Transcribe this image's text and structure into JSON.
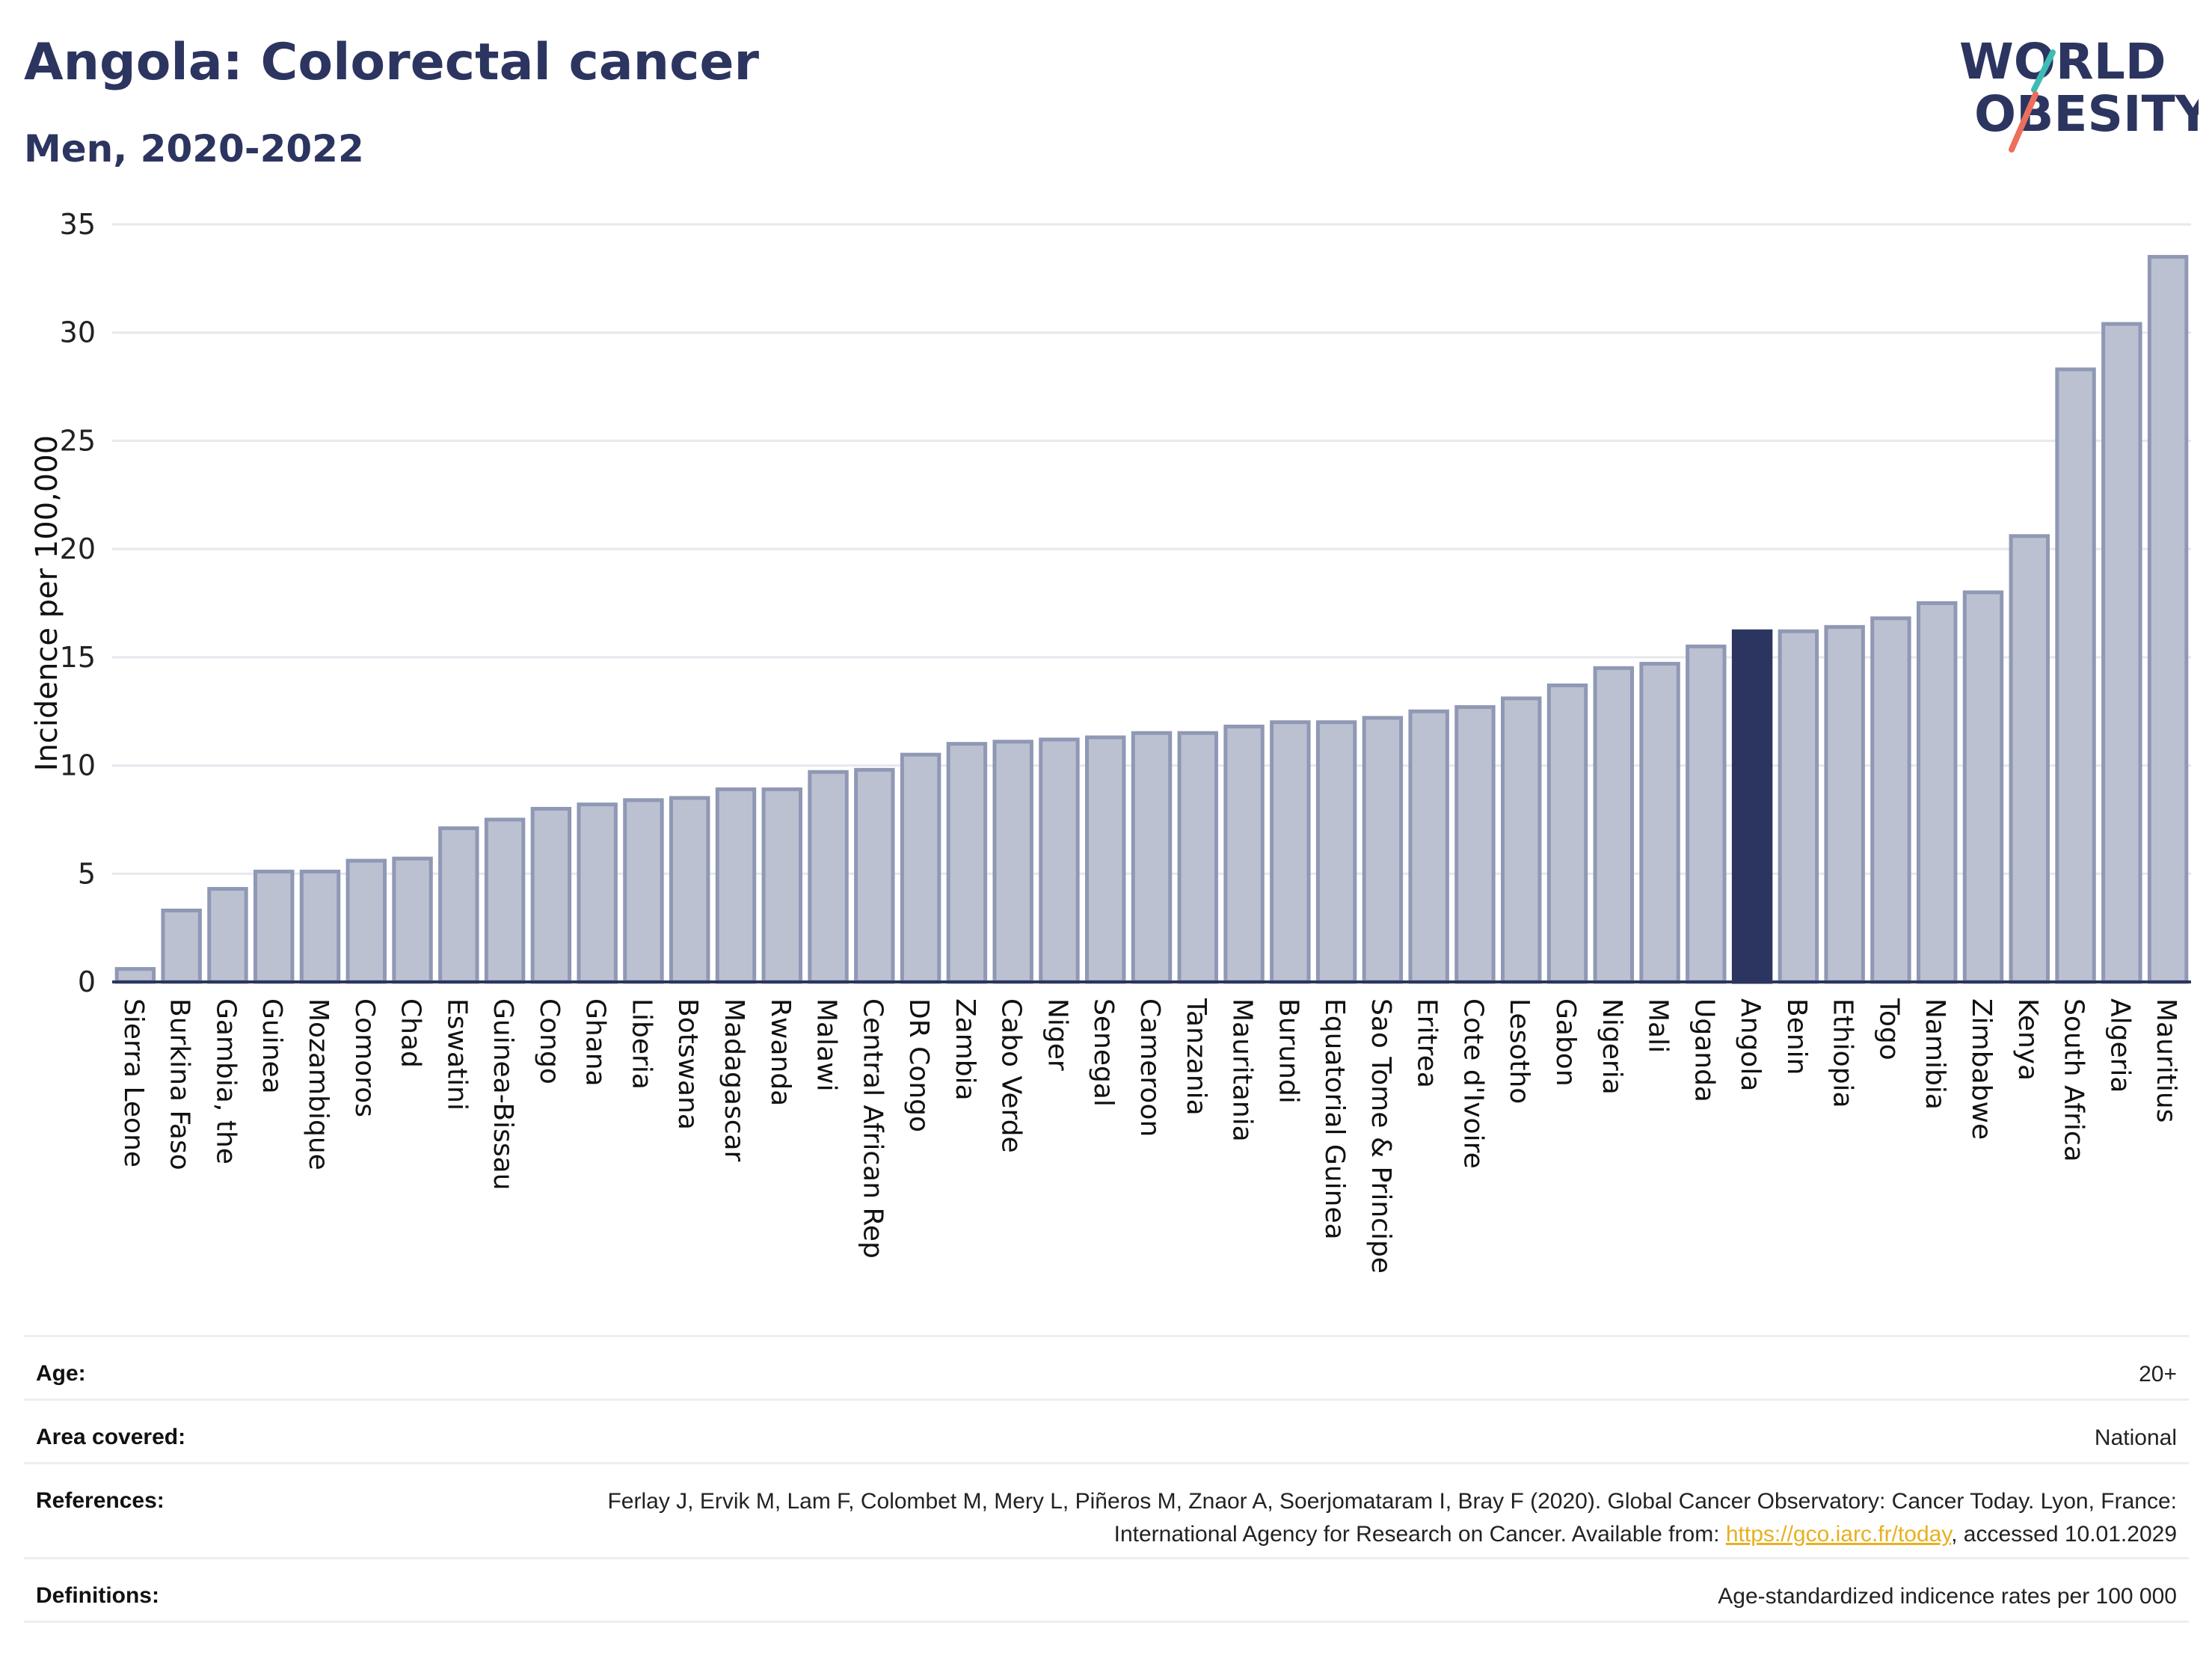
{
  "header": {
    "title": "Angola: Colorectal cancer",
    "subtitle": "Men, 2020-2022"
  },
  "logo": {
    "line1": "WORLD",
    "line2": "OBESITY"
  },
  "chart_data": {
    "type": "bar",
    "ylabel": "Incidence per 100,000",
    "ylim": [
      0,
      35
    ],
    "yticks": [
      0,
      5,
      10,
      15,
      20,
      25,
      30,
      35
    ],
    "grid": true,
    "highlight": "Angola",
    "colors": {
      "bar": "#bcc1d1",
      "bar_edge": "#8f98b4",
      "highlight": "#2c3560",
      "grid": "#e6e8ee"
    },
    "categories": [
      "Sierra Leone",
      "Burkina Faso",
      "Gambia, the",
      "Guinea",
      "Mozambique",
      "Comoros",
      "Chad",
      "Eswatini",
      "Guinea-Bissau",
      "Congo",
      "Ghana",
      "Liberia",
      "Botswana",
      "Madagascar",
      "Rwanda",
      "Malawi",
      "Central African Rep",
      "DR Congo",
      "Zambia",
      "Cabo Verde",
      "Niger",
      "Senegal",
      "Cameroon",
      "Tanzania",
      "Mauritania",
      "Burundi",
      "Equatorial Guinea",
      "Sao Tome & Principe",
      "Eritrea",
      "Cote d'Ivoire",
      "Lesotho",
      "Gabon",
      "Nigeria",
      "Mali",
      "Uganda",
      "Angola",
      "Benin",
      "Ethiopia",
      "Togo",
      "Namibia",
      "Zimbabwe",
      "Kenya",
      "South Africa",
      "Algeria",
      "Mauritius"
    ],
    "values": [
      0.6,
      3.3,
      4.3,
      5.1,
      5.1,
      5.6,
      5.7,
      7.1,
      7.5,
      8.0,
      8.2,
      8.4,
      8.5,
      8.9,
      8.9,
      9.7,
      9.8,
      10.5,
      11.0,
      11.1,
      11.2,
      11.3,
      11.5,
      11.5,
      11.8,
      12.0,
      12.0,
      12.2,
      12.5,
      12.7,
      13.1,
      13.7,
      14.5,
      14.7,
      15.5,
      16.2,
      16.2,
      16.4,
      16.8,
      17.5,
      18.0,
      20.6,
      28.3,
      30.4,
      33.5
    ]
  },
  "meta": {
    "age_label": "Age:",
    "age_value": "20+",
    "area_label": "Area covered:",
    "area_value": "National",
    "ref_label": "References:",
    "ref_text_1": "Ferlay J, Ervik M, Lam F, Colombet M, Mery L, Piñeros M, Znaor A, Soerjomataram I, Bray F (2020). Global Cancer Observatory: Cancer Today. Lyon, France: International Agency for Research on Cancer. Available from: ",
    "ref_link": "https://gco.iarc.fr/today",
    "ref_text_2": ", accessed 10.01.2029",
    "def_label": "Definitions:",
    "def_value": "Age-standardized indicence rates per 100 000"
  }
}
